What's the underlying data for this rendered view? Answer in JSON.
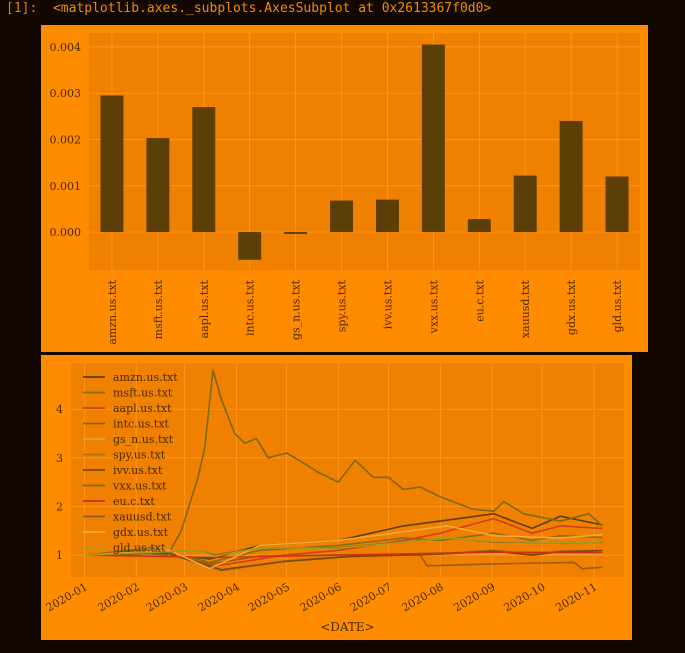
{
  "prompt": {
    "label": "[1]:",
    "output": "<matplotlib.axes._subplots.AxesSubplot at 0x2613367f0d0>"
  },
  "colors": {
    "background": "#120800",
    "figure": "#ff8c00",
    "axes": "#f08000",
    "bars": "#5c3f07",
    "grid": "#ff9d2a",
    "text": "#4a2a00"
  },
  "chart_data": [
    {
      "type": "bar",
      "categories": [
        "amzn.us.txt",
        "msft.us.txt",
        "aapl.us.txt",
        "intc.us.txt",
        "gs_n.us.txt",
        "spy.us.txt",
        "ivv.us.txt",
        "vxx.us.txt",
        "eu.c.txt",
        "xauusd.txt",
        "gdx.us.txt",
        "gld.us.txt"
      ],
      "values": [
        0.00295,
        0.00203,
        0.0027,
        -0.0006,
        -4e-05,
        0.00068,
        0.0007,
        0.00405,
        0.00028,
        0.00122,
        0.0024,
        0.0012
      ],
      "ylim": [
        -0.00082,
        0.0043
      ],
      "yticks": [
        0.0,
        0.001,
        0.002,
        0.003,
        0.004
      ],
      "ytick_labels": [
        "0.000",
        "0.001",
        "0.002",
        "0.003",
        "0.004"
      ],
      "grid": true
    },
    {
      "type": "line",
      "xlabel": "<DATE>",
      "xlim": [
        "2019-12-24",
        "2020-11-19"
      ],
      "ylim": [
        0.55,
        4.95
      ],
      "xtick_labels": [
        "2020-01",
        "2020-02",
        "2020-03",
        "2020-04",
        "2020-05",
        "2020-06",
        "2020-07",
        "2020-08",
        "2020-09",
        "2020-10",
        "2020-11"
      ],
      "xtick_dates": [
        "2020-01-01",
        "2020-02-01",
        "2020-03-01",
        "2020-04-01",
        "2020-05-01",
        "2020-06-01",
        "2020-07-01",
        "2020-08-01",
        "2020-09-01",
        "2020-10-01",
        "2020-11-01"
      ],
      "yticks": [
        1,
        2,
        3,
        4
      ],
      "ytick_labels": [
        "1",
        "2",
        "3",
        "4"
      ],
      "legend_position": "top-left",
      "grid": true,
      "series": [
        {
          "name": "amzn.us.txt",
          "color": "#5c3f07",
          "points": [
            [
              "2020-01-02",
              1.0
            ],
            [
              "2020-02-01",
              1.08
            ],
            [
              "2020-03-16",
              0.92
            ],
            [
              "2020-04-15",
              1.2
            ],
            [
              "2020-06-01",
              1.3
            ],
            [
              "2020-07-10",
              1.6
            ],
            [
              "2020-08-01",
              1.7
            ],
            [
              "2020-09-02",
              1.85
            ],
            [
              "2020-09-25",
              1.55
            ],
            [
              "2020-10-12",
              1.8
            ],
            [
              "2020-11-06",
              1.62
            ]
          ]
        },
        {
          "name": "msft.us.txt",
          "color": "#8a6c10",
          "points": [
            [
              "2020-01-02",
              1.0
            ],
            [
              "2020-02-10",
              1.15
            ],
            [
              "2020-03-16",
              0.85
            ],
            [
              "2020-04-15",
              1.1
            ],
            [
              "2020-06-01",
              1.2
            ],
            [
              "2020-07-10",
              1.35
            ],
            [
              "2020-08-01",
              1.3
            ],
            [
              "2020-09-02",
              1.45
            ],
            [
              "2020-09-25",
              1.3
            ],
            [
              "2020-10-12",
              1.4
            ],
            [
              "2020-11-06",
              1.36
            ]
          ]
        },
        {
          "name": "aapl.us.txt",
          "color": "#d0401a",
          "points": [
            [
              "2020-01-02",
              1.0
            ],
            [
              "2020-02-10",
              1.1
            ],
            [
              "2020-03-20",
              0.78
            ],
            [
              "2020-04-30",
              1.0
            ],
            [
              "2020-06-01",
              1.1
            ],
            [
              "2020-07-10",
              1.3
            ],
            [
              "2020-08-01",
              1.45
            ],
            [
              "2020-09-02",
              1.75
            ],
            [
              "2020-09-25",
              1.45
            ],
            [
              "2020-10-12",
              1.6
            ],
            [
              "2020-11-06",
              1.55
            ]
          ]
        },
        {
          "name": "intc.us.txt",
          "color": "#9a5a10",
          "points": [
            [
              "2020-01-02",
              1.0
            ],
            [
              "2020-02-15",
              1.05
            ],
            [
              "2020-03-16",
              0.82
            ],
            [
              "2020-04-15",
              0.98
            ],
            [
              "2020-06-01",
              1.0
            ],
            [
              "2020-07-20",
              1.0
            ],
            [
              "2020-07-24",
              0.78
            ],
            [
              "2020-09-02",
              0.82
            ],
            [
              "2020-10-20",
              0.85
            ],
            [
              "2020-10-25",
              0.72
            ],
            [
              "2020-11-06",
              0.75
            ]
          ]
        },
        {
          "name": "gs_n.us.txt",
          "color": "#e0a040",
          "points": [
            [
              "2020-01-02",
              1.0
            ],
            [
              "2020-03-10",
              0.98
            ],
            [
              "2020-03-23",
              0.95
            ],
            [
              "2020-06-01",
              1.0
            ],
            [
              "2020-09-02",
              1.03
            ],
            [
              "2020-11-06",
              1.02
            ]
          ]
        },
        {
          "name": "spy.us.txt",
          "color": "#a07418",
          "points": [
            [
              "2020-01-02",
              1.0
            ],
            [
              "2020-02-19",
              1.05
            ],
            [
              "2020-03-23",
              0.68
            ],
            [
              "2020-04-30",
              0.88
            ],
            [
              "2020-06-08",
              0.98
            ],
            [
              "2020-08-01",
              1.03
            ],
            [
              "2020-09-02",
              1.1
            ],
            [
              "2020-09-25",
              1.02
            ],
            [
              "2020-10-12",
              1.08
            ],
            [
              "2020-11-06",
              1.1
            ]
          ]
        },
        {
          "name": "ivv.us.txt",
          "color": "#7a4a08",
          "points": [
            [
              "2020-01-02",
              1.0
            ],
            [
              "2020-02-19",
              1.04
            ],
            [
              "2020-03-23",
              0.7
            ],
            [
              "2020-04-30",
              0.87
            ],
            [
              "2020-06-08",
              0.97
            ],
            [
              "2020-08-01",
              1.02
            ],
            [
              "2020-09-02",
              1.08
            ],
            [
              "2020-09-25",
              1.0
            ],
            [
              "2020-10-12",
              1.07
            ],
            [
              "2020-11-06",
              1.09
            ]
          ]
        },
        {
          "name": "vxx.us.txt",
          "color": "#7a6a14",
          "points": [
            [
              "2020-01-02",
              1.0
            ],
            [
              "2020-01-31",
              1.05
            ],
            [
              "2020-02-20",
              1.0
            ],
            [
              "2020-02-28",
              1.5
            ],
            [
              "2020-03-09",
              2.6
            ],
            [
              "2020-03-13",
              3.2
            ],
            [
              "2020-03-18",
              4.8
            ],
            [
              "2020-03-23",
              4.2
            ],
            [
              "2020-03-31",
              3.5
            ],
            [
              "2020-04-06",
              3.3
            ],
            [
              "2020-04-13",
              3.4
            ],
            [
              "2020-04-20",
              3.0
            ],
            [
              "2020-05-01",
              3.1
            ],
            [
              "2020-05-11",
              2.9
            ],
            [
              "2020-05-20",
              2.7
            ],
            [
              "2020-06-01",
              2.5
            ],
            [
              "2020-06-11",
              2.95
            ],
            [
              "2020-06-22",
              2.6
            ],
            [
              "2020-07-01",
              2.6
            ],
            [
              "2020-07-10",
              2.35
            ],
            [
              "2020-07-20",
              2.4
            ],
            [
              "2020-08-01",
              2.2
            ],
            [
              "2020-08-20",
              1.95
            ],
            [
              "2020-09-02",
              1.9
            ],
            [
              "2020-09-08",
              2.1
            ],
            [
              "2020-09-20",
              1.85
            ],
            [
              "2020-10-12",
              1.7
            ],
            [
              "2020-10-29",
              1.85
            ],
            [
              "2020-11-06",
              1.6
            ]
          ]
        },
        {
          "name": "eu.c.txt",
          "color": "#d03010",
          "points": [
            [
              "2020-01-02",
              1.0
            ],
            [
              "2020-03-20",
              0.95
            ],
            [
              "2020-06-01",
              1.0
            ],
            [
              "2020-09-02",
              1.06
            ],
            [
              "2020-11-06",
              1.05
            ]
          ]
        },
        {
          "name": "xauusd.txt",
          "color": "#8a5a2a",
          "points": [
            [
              "2020-01-02",
              1.0
            ],
            [
              "2020-03-09",
              1.1
            ],
            [
              "2020-03-19",
              1.0
            ],
            [
              "2020-04-15",
              1.15
            ],
            [
              "2020-06-01",
              1.15
            ],
            [
              "2020-08-06",
              1.35
            ],
            [
              "2020-09-02",
              1.27
            ],
            [
              "2020-11-06",
              1.25
            ]
          ]
        },
        {
          "name": "gdx.us.txt",
          "color": "#f0a838",
          "points": [
            [
              "2020-01-02",
              1.0
            ],
            [
              "2020-02-21",
              1.1
            ],
            [
              "2020-03-16",
              0.72
            ],
            [
              "2020-04-15",
              1.2
            ],
            [
              "2020-06-01",
              1.3
            ],
            [
              "2020-08-05",
              1.6
            ],
            [
              "2020-09-02",
              1.4
            ],
            [
              "2020-10-12",
              1.35
            ],
            [
              "2020-11-06",
              1.42
            ]
          ]
        },
        {
          "name": "gld.us.txt",
          "color": "#a89a20",
          "points": [
            [
              "2020-01-02",
              1.0
            ],
            [
              "2020-03-09",
              1.1
            ],
            [
              "2020-03-19",
              0.98
            ],
            [
              "2020-04-15",
              1.15
            ],
            [
              "2020-06-01",
              1.14
            ],
            [
              "2020-08-06",
              1.35
            ],
            [
              "2020-09-02",
              1.28
            ],
            [
              "2020-11-06",
              1.25
            ]
          ]
        }
      ]
    }
  ]
}
